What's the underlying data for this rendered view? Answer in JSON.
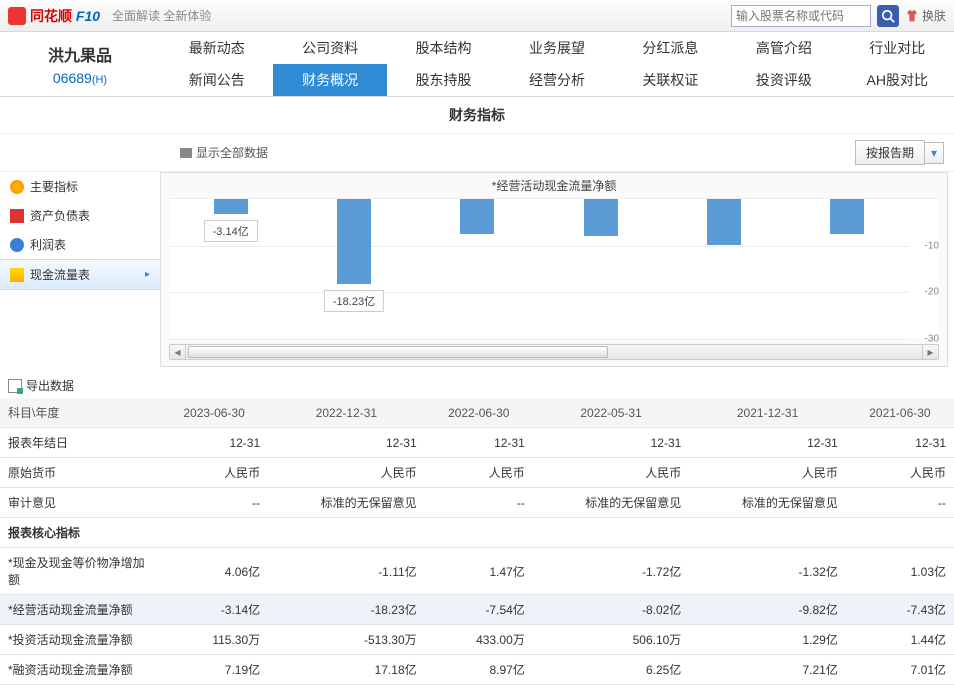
{
  "header": {
    "logo_main": "同花顺",
    "logo_sub": "F10",
    "logo_tag": "全面解读 全新体验",
    "search_placeholder": "输入股票名称或代码",
    "skin_label": "换肤"
  },
  "stock": {
    "name": "洪九果品",
    "code": "06689",
    "suffix": "(H)"
  },
  "nav": {
    "row1": [
      "最新动态",
      "公司资料",
      "股本结构",
      "业务展望",
      "分红派息",
      "高管介绍",
      "行业对比"
    ],
    "row2": [
      "新闻公告",
      "财务概况",
      "股东持股",
      "经营分析",
      "关联权证",
      "投资评级",
      "AH股对比"
    ],
    "active": "财务概况"
  },
  "sub_title": "财务指标",
  "toolbar": {
    "show_all": "显示全部数据",
    "period_btn": "按报告期",
    "arrow": "▾"
  },
  "sidebar": {
    "items": [
      {
        "label": "主要指标",
        "icon": "icon-orange"
      },
      {
        "label": "资产负债表",
        "icon": "icon-red"
      },
      {
        "label": "利润表",
        "icon": "icon-blue"
      },
      {
        "label": "现金流量表",
        "icon": "icon-gold",
        "active": true
      }
    ],
    "export": "导出数据"
  },
  "chart": {
    "title": "*经营活动现金流量净额",
    "ylim_top": 0,
    "ylim_bottom": -30,
    "ticks": [
      {
        "v": -10,
        "label": "-10"
      },
      {
        "v": -20,
        "label": "-20"
      },
      {
        "v": -30,
        "label": "-30"
      }
    ],
    "bar_color": "#5b9bd5",
    "grid_color": "#eeeeee",
    "background": "#ffffff",
    "bars": [
      {
        "value": -3.14,
        "label": "-3.14亿",
        "show_label": true
      },
      {
        "value": -18.23,
        "label": "-18.23亿",
        "show_label": true
      },
      {
        "value": -7.54
      },
      {
        "value": -8.02
      },
      {
        "value": -9.82
      },
      {
        "value": -7.43
      }
    ]
  },
  "table": {
    "header_first": "科目\\年度",
    "columns": [
      "2023-06-30",
      "2022-12-31",
      "2022-06-30",
      "2022-05-31",
      "2021-12-31",
      "2021-06-30"
    ],
    "rows": [
      {
        "label": "报表年结日",
        "cells": [
          "12-31",
          "12-31",
          "12-31",
          "12-31",
          "12-31",
          "12-31"
        ]
      },
      {
        "label": "原始货币",
        "cells": [
          "人民币",
          "人民币",
          "人民币",
          "人民币",
          "人民币",
          "人民币"
        ]
      },
      {
        "label": "审计意见",
        "cells": [
          "--",
          "标准的无保留意见",
          "--",
          "标准的无保留意见",
          "标准的无保留意见",
          "--"
        ]
      }
    ],
    "section": "报表核心指标",
    "core_rows": [
      {
        "label": "*现金及现金等价物净增加额",
        "cells": [
          "4.06亿",
          "-1.11亿",
          "1.47亿",
          "-1.72亿",
          "-1.32亿",
          "1.03亿"
        ]
      },
      {
        "label": "*经营活动现金流量净额",
        "cells": [
          "-3.14亿",
          "-18.23亿",
          "-7.54亿",
          "-8.02亿",
          "-9.82亿",
          "-7.43亿"
        ],
        "hl": true
      },
      {
        "label": "*投资活动现金流量净额",
        "cells": [
          "115.30万",
          "-513.30万",
          "433.00万",
          "506.10万",
          "1.29亿",
          "1.44亿"
        ]
      },
      {
        "label": "*融资活动现金流量净额",
        "cells": [
          "7.19亿",
          "17.18亿",
          "8.97亿",
          "6.25亿",
          "7.21亿",
          "7.01亿"
        ]
      }
    ]
  }
}
